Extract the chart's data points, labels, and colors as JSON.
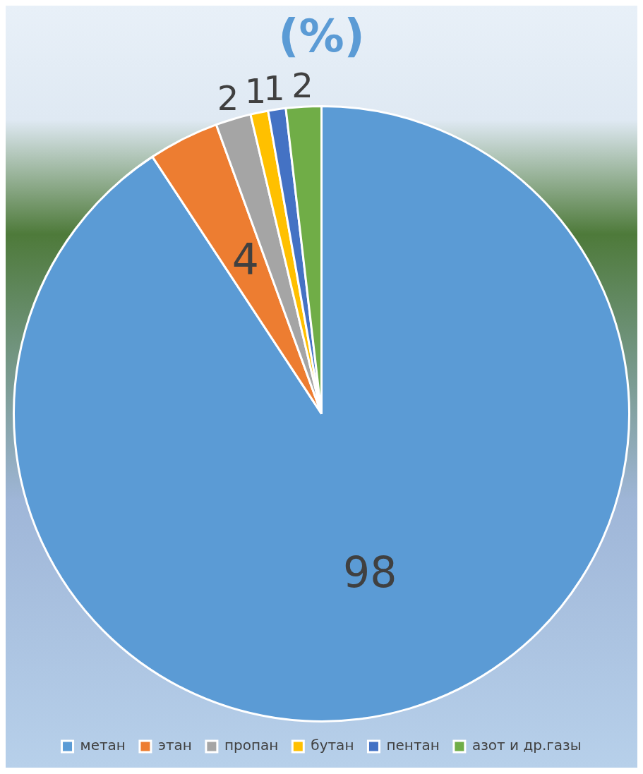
{
  "chart_data": {
    "type": "pie",
    "title": "(%)",
    "categories": [
      "метан",
      "этан",
      "пропан",
      "бутан",
      "пентан",
      "азот и др.газы"
    ],
    "values": [
      98,
      4,
      2,
      1,
      1,
      2
    ],
    "colors": [
      "#5b9bd5",
      "#ed7d31",
      "#a5a5a5",
      "#ffc000",
      "#4472c4",
      "#70ad47"
    ],
    "data_labels": true,
    "legend": "bottom"
  }
}
